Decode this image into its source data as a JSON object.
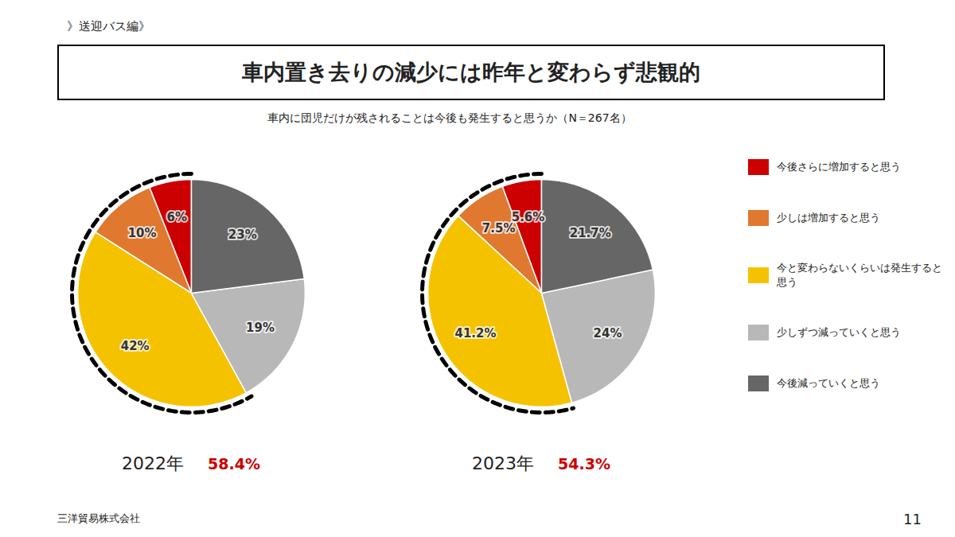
{
  "title": "車内置き去りの減少には昨年と変わらず悲観的",
  "subtitle": "》送迎バス編》",
  "question": "車内に団児だけが残されることは今後も発生すると思うか（N＝267名）",
  "footer": "三洋貿易株式会社",
  "page_number": "11",
  "legend": "right",
  "chart_data": [
    {
      "type": "pie",
      "title": "2022年",
      "categories": [
        "今後さらに増加すると思う",
        "少しは増加すると思う",
        "今と変わらないくらいは発生すると思う",
        "少しずつ減っていくと思う",
        "今後減っていくと思う"
      ],
      "values": [
        6,
        10,
        42,
        19,
        23
      ],
      "value_labels": [
        "6%",
        "10%",
        "42%",
        "19%",
        "23%"
      ],
      "colors": [
        "#cc0000",
        "#e07830",
        "#f5c200",
        "#b8b8b8",
        "#666666"
      ],
      "data_labels": true,
      "highlight": {
        "value": 58.4,
        "label": "58.4%",
        "color": "#cc0000"
      }
    },
    {
      "type": "pie",
      "title": "2023年",
      "categories": [
        "今後さらに増加すると思う",
        "少しは増加すると思う",
        "今と変わらないくらいは発生すると思う",
        "少しずつ減っていくと思う",
        "今後減っていくと思う"
      ],
      "values": [
        5.6,
        7.5,
        41.2,
        24,
        21.7
      ],
      "value_labels": [
        "5.6%",
        "7.5%",
        "41.2%",
        "24%",
        "21.7%"
      ],
      "colors": [
        "#cc0000",
        "#e07830",
        "#f5c200",
        "#b8b8b8",
        "#666666"
      ],
      "data_labels": true,
      "highlight": {
        "value": 54.3,
        "label": "54.3%",
        "color": "#cc0000"
      }
    }
  ]
}
